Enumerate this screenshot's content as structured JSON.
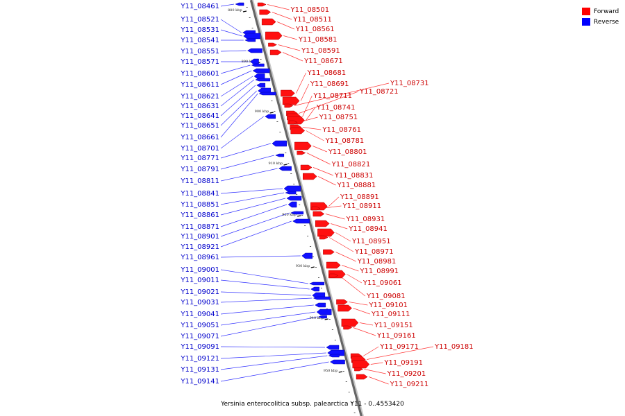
{
  "legend": {
    "forward": {
      "label": "Forward",
      "color": "#ff0000"
    },
    "reverse": {
      "label": "Reverse",
      "color": "#0000ff"
    }
  },
  "caption": "Yersinia enterocolitica subsp. palearctica Y11 - 0..4553420",
  "scale_marks": [
    "880 kbp",
    "890 kbp",
    "900 kbp",
    "910 kbp",
    "920 kbp",
    "930 kbp",
    "940 kbp",
    "950 kbp"
  ],
  "reverse_genes": [
    "Y11_08461",
    "Y11_08521",
    "Y11_08531",
    "Y11_08541",
    "Y11_08551",
    "Y11_08571",
    "Y11_08601",
    "Y11_08611",
    "Y11_08621",
    "Y11_08631",
    "Y11_08641",
    "Y11_08651",
    "Y11_08661",
    "Y11_08701",
    "Y11_08771",
    "Y11_08791",
    "Y11_08811",
    "Y11_08841",
    "Y11_08851",
    "Y11_08861",
    "Y11_08871",
    "Y11_08901",
    "Y11_08921",
    "Y11_08961",
    "Y11_09001",
    "Y11_09011",
    "Y11_09021",
    "Y11_09031",
    "Y11_09041",
    "Y11_09051",
    "Y11_09071",
    "Y11_09091",
    "Y11_09121",
    "Y11_09131",
    "Y11_09141"
  ],
  "forward_genes": [
    "Y11_08501",
    "Y11_08511",
    "Y11_08561",
    "Y11_08581",
    "Y11_08591",
    "Y11_08671",
    "Y11_08681",
    "Y11_08691",
    "Y11_08731",
    "Y11_08721",
    "Y11_08711",
    "Y11_08741",
    "Y11_08751",
    "Y11_08761",
    "Y11_08781",
    "Y11_08801",
    "Y11_08821",
    "Y11_08831",
    "Y11_08881",
    "Y11_08891",
    "Y11_08911",
    "Y11_08931",
    "Y11_08941",
    "Y11_08951",
    "Y11_08971",
    "Y11_08981",
    "Y11_08991",
    "Y11_09061",
    "Y11_09081",
    "Y11_09101",
    "Y11_09111",
    "Y11_09151",
    "Y11_09161",
    "Y11_09171",
    "Y11_09181",
    "Y11_09191",
    "Y11_09201",
    "Y11_09211"
  ]
}
